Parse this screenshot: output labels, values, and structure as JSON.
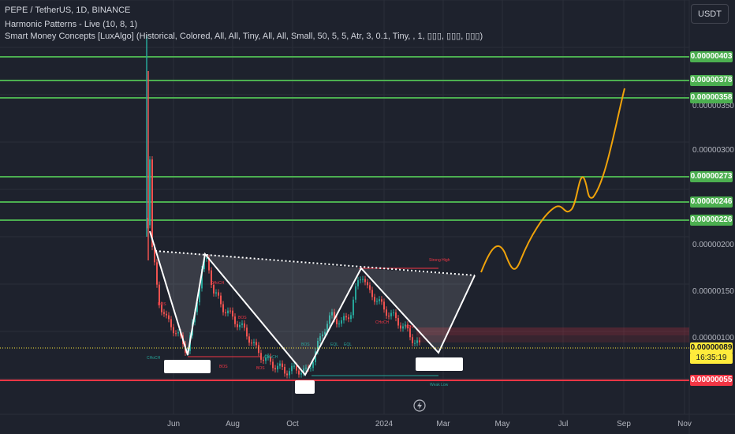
{
  "header": {
    "symbol_line": "PEPE / TetherUS, 1D, BINANCE",
    "indicator1": "Harmonic Patterns - Live (10, 8, 1)",
    "indicator2": "Smart Money Concepts [LuxAlgo] (Historical, Colored, All, All, Tiny, All, All, Small, 50, 5, 5, Atr, 3, 0.1, Tiny, , 1, ▯▯▯, ▯▯▯, ▯▯▯)"
  },
  "currency_button": "USDT",
  "chart_data": {
    "type": "line",
    "x_axis": {
      "tick_labels": [
        "Jun",
        "Aug",
        "Oct",
        "2024",
        "Mar",
        "May",
        "Jul",
        "Sep",
        "Nov"
      ]
    },
    "y_axis": {
      "tick_labels": [
        "0.00000350",
        "0.00000300",
        "0.00000200",
        "0.00000150",
        "0.00000100"
      ]
    },
    "horizontal_levels": [
      {
        "value": "0.00000403",
        "color": "#4caf50"
      },
      {
        "value": "0.00000378",
        "color": "#4caf50"
      },
      {
        "value": "0.00000358",
        "color": "#4caf50"
      },
      {
        "value": "0.00000273",
        "color": "#4caf50"
      },
      {
        "value": "0.00000246",
        "color": "#4caf50"
      },
      {
        "value": "0.00000226",
        "color": "#4caf50"
      },
      {
        "value": "0.00000055",
        "color": "#f23645"
      }
    ],
    "current_price": {
      "value": "0.00000089",
      "countdown": "16:35:19",
      "color": "#ffeb3b"
    },
    "annotations": {
      "strong_high": "Strong High",
      "weak_low": "Weak Low",
      "bos": "BOS",
      "choch": "CHoCH",
      "eql": "EQL"
    },
    "colors": {
      "up_candle": "#26a69a",
      "down_candle": "#ef5350",
      "pattern": "#ffffff",
      "projection": "#f0a30a",
      "neckline": "#ffffff"
    }
  }
}
